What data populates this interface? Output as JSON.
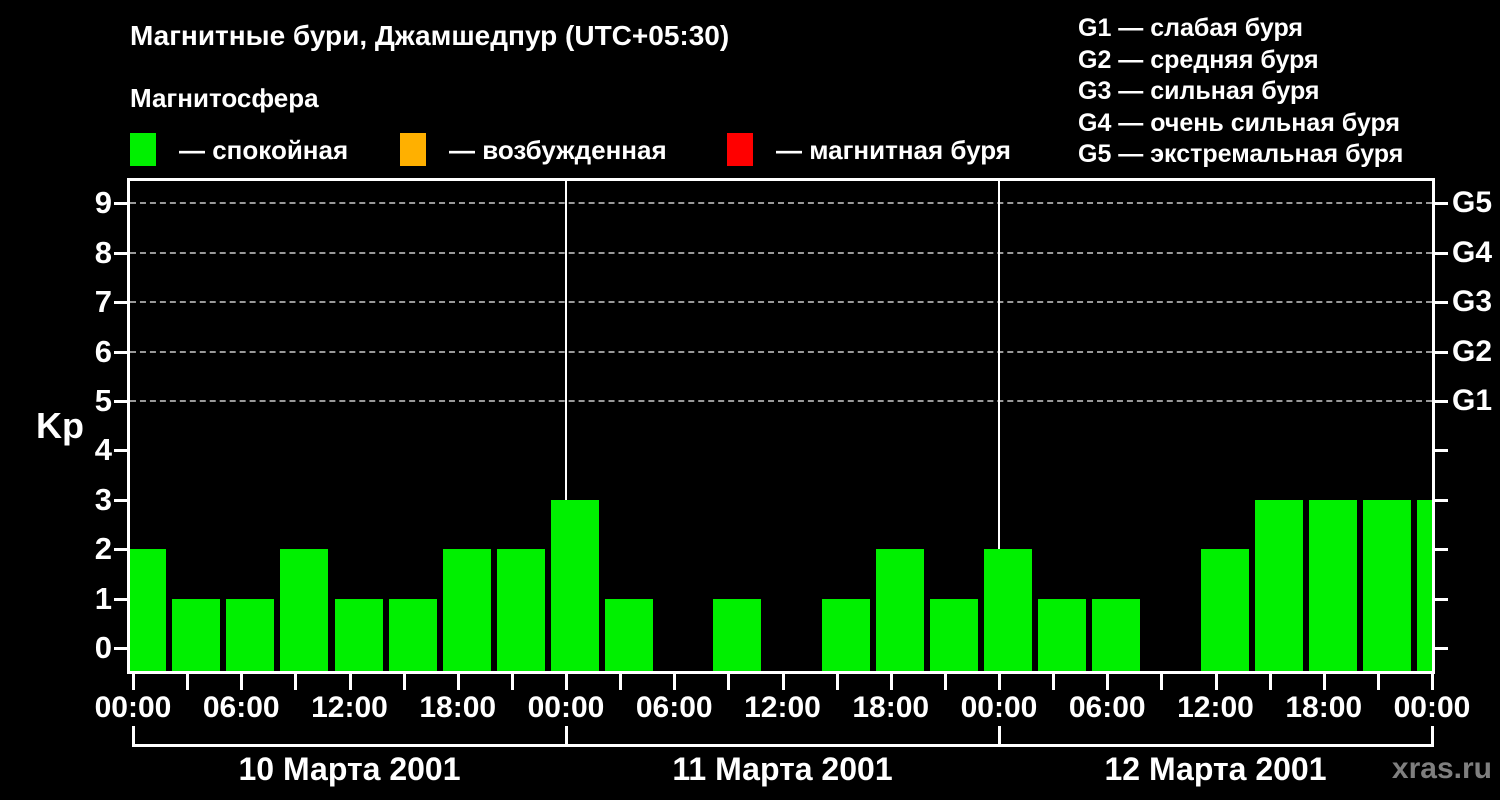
{
  "header": {
    "title": "Магнитные бури, Джамшедпур (UTC+05:30)",
    "subtitle": "Магнитосфера"
  },
  "magnetosphere_legend": {
    "items": [
      {
        "name": "quiet",
        "label": "— спокойная",
        "color": "#00F000"
      },
      {
        "name": "unsettled",
        "label": "— возбужденная",
        "color": "#FFB000"
      },
      {
        "name": "storm",
        "label": "— магнитная буря",
        "color": "#FF0000"
      }
    ]
  },
  "storm_scale_legend": {
    "items": [
      "G1 — слабая буря",
      "G2 — средняя буря",
      "G3 — сильная буря",
      "G4 — очень сильная буря",
      "G5 — экстремальная буря"
    ]
  },
  "watermark": "xras.ru",
  "chart_data": {
    "type": "bar",
    "ylabel": "Kp",
    "ylim": [
      0,
      9.5
    ],
    "yticks": [
      0,
      1,
      2,
      3,
      4,
      5,
      6,
      7,
      8,
      9
    ],
    "grid_y": [
      5,
      6,
      7,
      8,
      9
    ],
    "grid_style": "dashed gray horizontal lines only at Kp 5-9",
    "right_axis_labels": [
      {
        "y": 5,
        "label": "G1"
      },
      {
        "y": 6,
        "label": "G2"
      },
      {
        "y": 7,
        "label": "G3"
      },
      {
        "y": 8,
        "label": "G4"
      },
      {
        "y": 9,
        "label": "G5"
      }
    ],
    "x_total_hours": 72,
    "x_minor_tick_every_hours": 3,
    "x_label_every_hours": 6,
    "x_labels": [
      {
        "hour": 0,
        "label": "00:00"
      },
      {
        "hour": 6,
        "label": "06:00"
      },
      {
        "hour": 12,
        "label": "12:00"
      },
      {
        "hour": 18,
        "label": "18:00"
      },
      {
        "hour": 24,
        "label": "00:00"
      },
      {
        "hour": 30,
        "label": "06:00"
      },
      {
        "hour": 36,
        "label": "12:00"
      },
      {
        "hour": 42,
        "label": "18:00"
      },
      {
        "hour": 48,
        "label": "00:00"
      },
      {
        "hour": 54,
        "label": "06:00"
      },
      {
        "hour": 60,
        "label": "12:00"
      },
      {
        "hour": 66,
        "label": "18:00"
      },
      {
        "hour": 72,
        "label": "00:00"
      }
    ],
    "day_boundaries_hours": [
      0,
      24,
      48,
      72
    ],
    "days": [
      {
        "date": "10 Марта 2001",
        "kp_3h": [
          2,
          1,
          1,
          2,
          1,
          1,
          2,
          2
        ]
      },
      {
        "date": "11 Марта 2001",
        "kp_3h": [
          3,
          1,
          0,
          1,
          0,
          1,
          2,
          1
        ]
      },
      {
        "date": "12 Марта 2001",
        "kp_3h": [
          2,
          1,
          1,
          0,
          2,
          3,
          3,
          3
        ]
      }
    ],
    "closing_bar_kp": 3,
    "bar_color": "#00F000",
    "notes": "bars centered on 3-hour marks (first and last bars clipped by plot edges); Kp=0 intervals drawn with no bar"
  }
}
